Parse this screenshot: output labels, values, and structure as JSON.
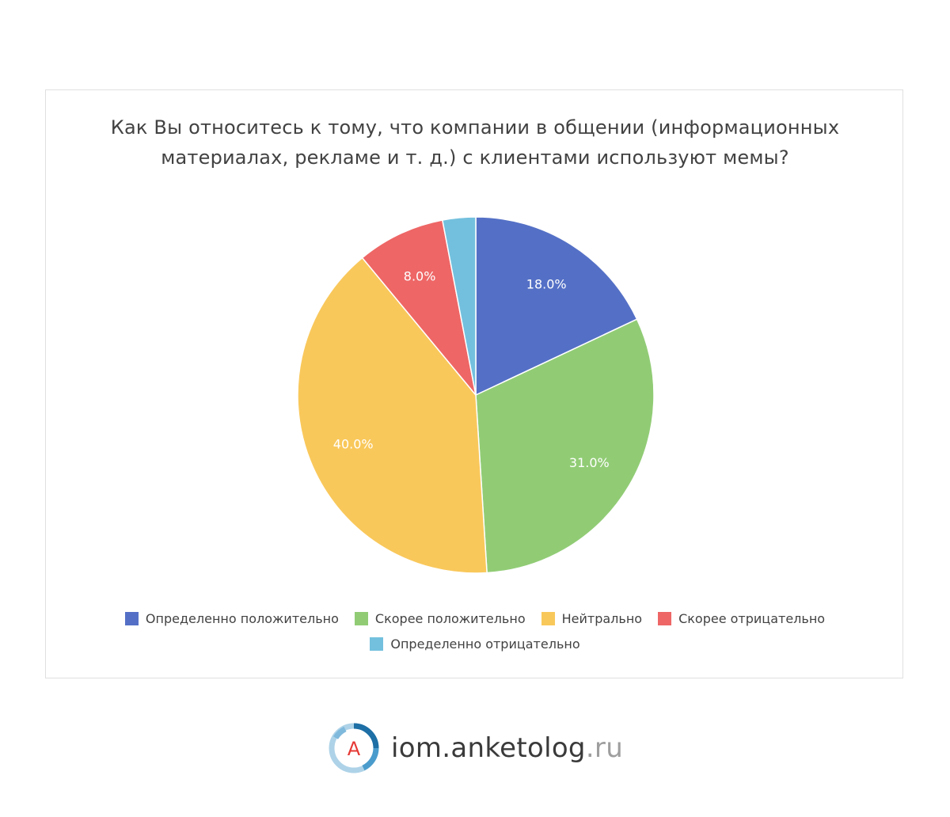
{
  "chart_data": {
    "type": "pie",
    "title": "Как Вы относитесь к тому, что компании в общении (информационных материалах, рекламе и т. д.) с клиентами используют мемы?",
    "categories": [
      "Определенно положительно",
      "Скорее положительно",
      "Нейтрально",
      "Скорее отрицательно",
      "Определенно отрицательно"
    ],
    "values": [
      18.0,
      31.0,
      40.0,
      8.0,
      3.0
    ],
    "data_labels": [
      "18.0%",
      "31.0%",
      "40.0%",
      "8.0%",
      ""
    ],
    "colors": [
      "#5470c6",
      "#91cc75",
      "#f9c85b",
      "#ee6666",
      "#73c0de"
    ],
    "legend_position": "bottom"
  },
  "brand": {
    "logo_letter": "А",
    "name": "iom.anketolog",
    "tld": ".ru"
  }
}
